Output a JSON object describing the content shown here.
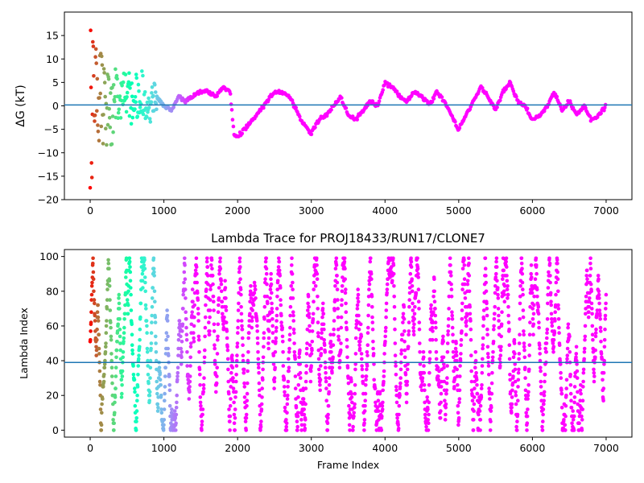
{
  "chart_data": [
    {
      "type": "scatter",
      "title": "",
      "xlabel": "",
      "ylabel": "ΔG (kT)",
      "xlim": [
        -350,
        7350
      ],
      "ylim": [
        -20,
        20
      ],
      "xticks": [
        0,
        1000,
        2000,
        3000,
        4000,
        5000,
        6000,
        7000
      ],
      "yticks": [
        -20,
        -15,
        -10,
        -5,
        0,
        5,
        10,
        15
      ],
      "color_encoding": "rainbow colormap, red at frame 0 to violet at later frames",
      "reference_line": {
        "y": 0.2,
        "color": "#1f77b4"
      },
      "series_anchors": {
        "x": [
          0,
          100,
          200,
          300,
          400,
          500,
          600,
          700,
          800,
          900,
          1000,
          1100,
          1200,
          1300,
          1400,
          1500,
          1600,
          1700,
          1800,
          1900,
          1950,
          2000,
          2100,
          2200,
          2300,
          2400,
          2500,
          2600,
          2700,
          2800,
          2900,
          3000,
          3100,
          3200,
          3300,
          3400,
          3500,
          3600,
          3700,
          3800,
          3900,
          4000,
          4100,
          4200,
          4300,
          4400,
          4500,
          4600,
          4700,
          4800,
          4900,
          5000,
          5100,
          5200,
          5300,
          5400,
          5500,
          5600,
          5700,
          5800,
          5900,
          6000,
          6100,
          6200,
          6300,
          6400,
          6500,
          6600,
          6700,
          6800,
          6900,
          7000
        ],
        "y": [
          0,
          3,
          1,
          0,
          1,
          1,
          2,
          3,
          0,
          2,
          0,
          -1,
          2,
          1,
          2,
          3,
          3,
          2,
          4,
          3,
          -6,
          -6.5,
          -5,
          -3,
          -1,
          1,
          3,
          3,
          2,
          -1,
          -4,
          -6,
          -3,
          -2,
          0,
          2,
          -2,
          -3,
          -1,
          1,
          0,
          5,
          4,
          2,
          1,
          3,
          2,
          0,
          3,
          1,
          -2,
          -5,
          -2,
          1,
          4,
          2,
          -1,
          3,
          5,
          1,
          0,
          -3,
          -2,
          0,
          3,
          -1,
          1,
          -2,
          0,
          -3,
          -2,
          0
        ]
      },
      "early_scatter_spread": [
        {
          "x": 0,
          "y_min": -20,
          "y_max": 20
        },
        {
          "x": 100,
          "y_min": -12,
          "y_max": 16
        },
        {
          "x": 200,
          "y_min": -11,
          "y_max": 15
        },
        {
          "x": 400,
          "y_min": -5,
          "y_max": 9
        },
        {
          "x": 700,
          "y_min": -4,
          "y_max": 7
        },
        {
          "x": 900,
          "y_min": -2,
          "y_max": 5
        }
      ]
    },
    {
      "type": "scatter",
      "title": "Lambda Trace for PROJ18433/RUN17/CLONE7",
      "xlabel": "Frame Index",
      "ylabel": "Lambda Index",
      "xlim": [
        -350,
        7350
      ],
      "ylim": [
        -4,
        104
      ],
      "xticks": [
        0,
        1000,
        2000,
        3000,
        4000,
        5000,
        6000,
        7000
      ],
      "yticks": [
        0,
        20,
        40,
        60,
        80,
        100
      ],
      "color_encoding": "rainbow colormap, red at frame 0 to violet at later frames",
      "reference_line": {
        "y": 39,
        "color": "#1f77b4"
      },
      "lambda_range": [
        0,
        99
      ],
      "frame_range": [
        0,
        7000
      ]
    }
  ]
}
